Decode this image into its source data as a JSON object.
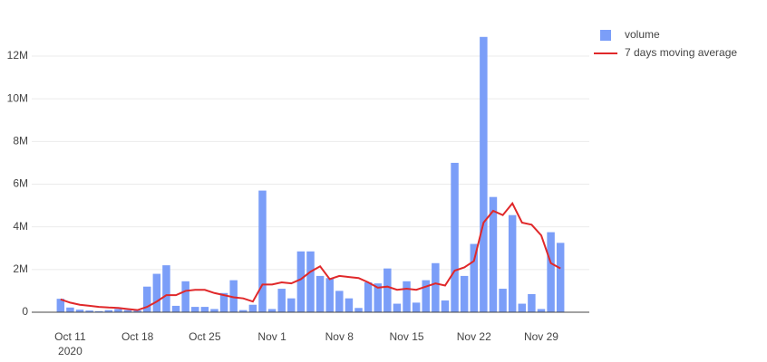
{
  "chart_data": {
    "type": "bar",
    "x": [
      "2020-10-10",
      "2020-10-11",
      "2020-10-12",
      "2020-10-13",
      "2020-10-14",
      "2020-10-15",
      "2020-10-16",
      "2020-10-17",
      "2020-10-18",
      "2020-10-19",
      "2020-10-20",
      "2020-10-21",
      "2020-10-22",
      "2020-10-23",
      "2020-10-24",
      "2020-10-25",
      "2020-10-26",
      "2020-10-27",
      "2020-10-28",
      "2020-10-29",
      "2020-10-30",
      "2020-10-31",
      "2020-11-01",
      "2020-11-02",
      "2020-11-03",
      "2020-11-04",
      "2020-11-05",
      "2020-11-06",
      "2020-11-07",
      "2020-11-08",
      "2020-11-09",
      "2020-11-10",
      "2020-11-11",
      "2020-11-12",
      "2020-11-13",
      "2020-11-14",
      "2020-11-15",
      "2020-11-16",
      "2020-11-17",
      "2020-11-18",
      "2020-11-19",
      "2020-11-20",
      "2020-11-21",
      "2020-11-22",
      "2020-11-23",
      "2020-11-24",
      "2020-11-25",
      "2020-11-26",
      "2020-11-27",
      "2020-11-28",
      "2020-11-29",
      "2020-11-30",
      "2020-12-01"
    ],
    "series": [
      {
        "name": "volume",
        "type": "bar",
        "color": "#7b9ef8",
        "values": [
          630000,
          220000,
          120000,
          80000,
          50000,
          100000,
          150000,
          100000,
          80000,
          1200000,
          1800000,
          2200000,
          300000,
          1450000,
          250000,
          250000,
          150000,
          900000,
          1500000,
          100000,
          350000,
          5700000,
          150000,
          1100000,
          650000,
          2850000,
          2850000,
          1700000,
          1600000,
          1000000,
          650000,
          200000,
          1400000,
          1350000,
          2050000,
          400000,
          1450000,
          450000,
          1500000,
          2300000,
          550000,
          7000000,
          1700000,
          3200000,
          12900000,
          5400000,
          1100000,
          4550000,
          400000,
          850000,
          150000,
          3750000,
          3250000
        ]
      },
      {
        "name": "7 days moving average",
        "type": "line",
        "color": "#e0282a",
        "values": [
          600000,
          450000,
          350000,
          300000,
          250000,
          220000,
          200000,
          150000,
          100000,
          250000,
          500000,
          800000,
          800000,
          1000000,
          1050000,
          1050000,
          900000,
          800000,
          700000,
          650000,
          500000,
          1300000,
          1300000,
          1400000,
          1350000,
          1550000,
          1900000,
          2150000,
          1550000,
          1700000,
          1650000,
          1600000,
          1400000,
          1150000,
          1200000,
          1050000,
          1100000,
          1050000,
          1200000,
          1350000,
          1250000,
          1950000,
          2100000,
          2400000,
          4200000,
          4750000,
          4550000,
          5100000,
          4200000,
          4100000,
          3600000,
          2300000,
          2050000
        ]
      }
    ],
    "xlim": [
      "2020-10-07",
      "2020-12-04"
    ],
    "xticks": [
      {
        "value": "2020-10-11",
        "label": "Oct 11"
      },
      {
        "value": "2020-10-18",
        "label": "Oct 18"
      },
      {
        "value": "2020-10-25",
        "label": "Oct 25"
      },
      {
        "value": "2020-11-01",
        "label": "Nov 1"
      },
      {
        "value": "2020-11-08",
        "label": "Nov 8"
      },
      {
        "value": "2020-11-15",
        "label": "Nov 15"
      },
      {
        "value": "2020-11-22",
        "label": "Nov 22"
      },
      {
        "value": "2020-11-29",
        "label": "Nov 29"
      }
    ],
    "x_year_label": "2020",
    "ylim": [
      0,
      13400000
    ],
    "yticks": [
      0,
      {
        "value": 2000000,
        "label": "2M"
      },
      {
        "value": 4000000,
        "label": "4M"
      },
      {
        "value": 6000000,
        "label": "6M"
      },
      {
        "value": 8000000,
        "label": "8M"
      },
      {
        "value": 10000000,
        "label": "10M"
      },
      {
        "value": 12000000,
        "label": "12M"
      }
    ],
    "grid": true,
    "legend": "top-right"
  }
}
